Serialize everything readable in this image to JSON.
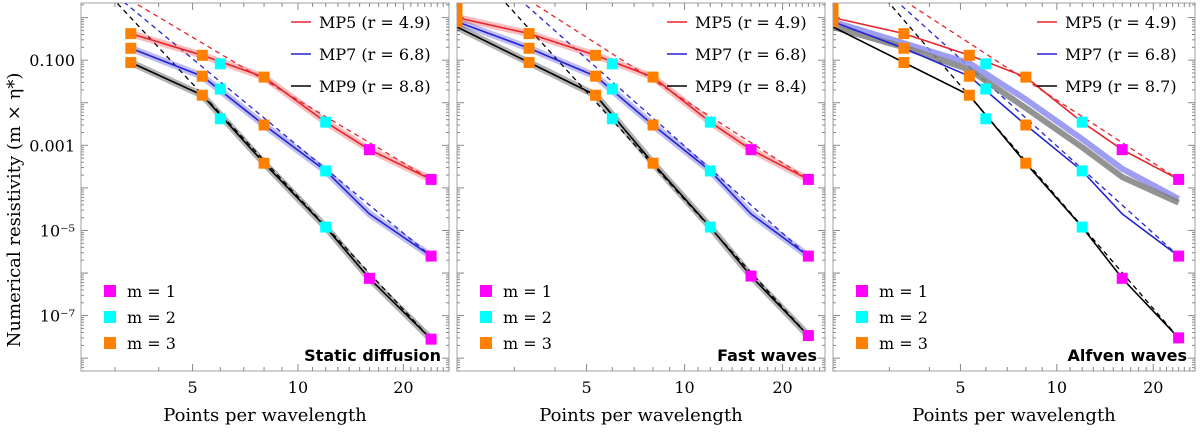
{
  "y_axis_title": "Numerical resistivity (m × η*)",
  "chart_data": [
    {
      "type": "line",
      "title": "Static diffusion",
      "xlabel": "Points per wavelength",
      "ylabel": "Numerical resistivity (m × η*)",
      "xscale": "log",
      "yscale": "log",
      "xlim": [
        2.4,
        27
      ],
      "ylim": [
        5e-09,
        2.2
      ],
      "x_ticks": [
        5,
        10,
        20
      ],
      "y_ticks": [
        {
          "value": 0.1,
          "label": "0.100"
        },
        {
          "value": 0.001,
          "label": "0.001"
        },
        {
          "value": 1e-05,
          "label": "10⁻⁵"
        },
        {
          "value": 1e-07,
          "label": "10⁻⁷"
        }
      ],
      "series": [
        {
          "name": "MP5 (r = 4.9)",
          "color": "#e8242a",
          "slope": -4.9,
          "x": [
            3.33,
            5.33,
            8.0,
            12.0,
            16.0,
            24.0
          ],
          "y": [
            0.42,
            0.13,
            0.04,
            0.0035,
            0.00079,
            0.000158
          ]
        },
        {
          "name": "MP7 (r = 6.8)",
          "color": "#2323d4",
          "slope": -6.8,
          "x": [
            3.33,
            5.33,
            8.0,
            12.0,
            16.0,
            24.0
          ],
          "y": [
            0.19,
            0.042,
            0.003,
            0.00025,
            2.45e-05,
            2.5e-06
          ]
        },
        {
          "name": "MP9 (r = 8.8)",
          "color": "#000000",
          "slope": -8.8,
          "x": [
            3.33,
            5.33,
            8.0,
            12.0,
            16.0,
            24.0
          ],
          "y": [
            0.088,
            0.015,
            0.00038,
            1.2e-05,
            7.5e-07,
            2.8e-08
          ]
        }
      ],
      "markers": [
        {
          "m": 1,
          "x": [
            16.0,
            16.0,
            24.0,
            24.0,
            24.0
          ],
          "y": [
            0.00079,
            7.5e-07,
            0.000158,
            2.5e-06,
            2.8e-08
          ]
        },
        {
          "m": 2,
          "x": [
            6.0,
            6.0,
            6.0,
            12.0,
            12.0,
            12.0
          ],
          "y": [
            0.082,
            0.021,
            0.0042,
            0.0035,
            0.00025,
            1.2e-05
          ]
        },
        {
          "m": 3,
          "x": [
            3.33,
            3.33,
            3.33,
            5.33,
            5.33,
            5.33,
            8.0,
            8.0,
            8.0
          ],
          "y": [
            0.42,
            0.19,
            0.088,
            0.13,
            0.042,
            0.015,
            0.04,
            0.003,
            0.00038
          ]
        }
      ],
      "wide_bands": []
    },
    {
      "type": "line",
      "title": "Fast waves",
      "xlabel": "Points per wavelength",
      "ylabel": "",
      "xscale": "log",
      "yscale": "log",
      "xlim": [
        2.0,
        27
      ],
      "ylim": [
        5e-09,
        2.2
      ],
      "x_ticks": [
        5,
        10,
        20
      ],
      "y_ticks": [],
      "series": [
        {
          "name": "MP5 (r = 4.9)",
          "color": "#e8242a",
          "slope": -4.9,
          "x": [
            2.0,
            3.33,
            5.33,
            8.0,
            12.0,
            16.0,
            24.0
          ],
          "y": [
            1.0,
            0.42,
            0.13,
            0.04,
            0.0035,
            0.00079,
            0.000158
          ]
        },
        {
          "name": "MP7 (r = 6.8)",
          "color": "#2323d4",
          "slope": -6.8,
          "x": [
            2.0,
            3.33,
            5.33,
            8.0,
            12.0,
            16.0,
            24.0
          ],
          "y": [
            0.8,
            0.19,
            0.042,
            0.003,
            0.00025,
            2.45e-05,
            2.5e-06
          ]
        },
        {
          "name": "MP9 (r = 8.4)",
          "color": "#000000",
          "slope": -8.4,
          "x": [
            2.0,
            3.33,
            5.33,
            8.0,
            12.0,
            16.0,
            24.0
          ],
          "y": [
            0.6,
            0.088,
            0.015,
            0.00038,
            1.2e-05,
            8.5e-07,
            3.4e-08
          ]
        }
      ],
      "markers": [
        {
          "m": 1,
          "x": [
            16.0,
            16.0,
            24.0,
            24.0,
            24.0
          ],
          "y": [
            0.00079,
            8.5e-07,
            0.000158,
            2.5e-06,
            3.4e-08
          ]
        },
        {
          "m": 2,
          "x": [
            6.0,
            6.0,
            6.0,
            12.0,
            12.0,
            12.0
          ],
          "y": [
            0.082,
            0.021,
            0.0042,
            0.0035,
            0.00025,
            1.2e-05
          ]
        },
        {
          "m": 3,
          "x": [
            2.0,
            2.0,
            2.0,
            3.33,
            3.33,
            3.33,
            5.33,
            5.33,
            5.33,
            8.0,
            8.0,
            8.0
          ],
          "y": [
            1.6,
            1.1,
            0.8,
            0.42,
            0.19,
            0.088,
            0.13,
            0.042,
            0.015,
            0.04,
            0.003,
            0.00038
          ]
        }
      ],
      "wide_bands": []
    },
    {
      "type": "line",
      "title": "Alfven waves",
      "xlabel": "Points per wavelength",
      "ylabel": "",
      "xscale": "log",
      "yscale": "log",
      "xlim": [
        2.0,
        27
      ],
      "ylim": [
        5e-09,
        2.2
      ],
      "x_ticks": [
        5,
        10,
        20
      ],
      "y_ticks": [],
      "series": [
        {
          "name": "MP5 (r = 4.9)",
          "color": "#e8242a",
          "slope": -4.9,
          "x": [
            2.0,
            3.33,
            5.33,
            8.0,
            12.0,
            16.0,
            24.0
          ],
          "y": [
            1.0,
            0.42,
            0.13,
            0.04,
            0.0035,
            0.00079,
            0.000158
          ]
        },
        {
          "name": "MP7 (r = 6.8)",
          "color": "#2323d4",
          "slope": -6.8,
          "x": [
            2.0,
            3.33,
            5.33,
            8.0,
            12.0,
            16.0,
            24.0
          ],
          "y": [
            0.8,
            0.19,
            0.042,
            0.003,
            0.00025,
            2.45e-05,
            2.5e-06
          ]
        },
        {
          "name": "MP9 (r = 8.7)",
          "color": "#000000",
          "slope": -8.7,
          "x": [
            2.0,
            3.33,
            5.33,
            8.0,
            12.0,
            16.0,
            24.0
          ],
          "y": [
            0.6,
            0.088,
            0.015,
            0.00038,
            1.2e-05,
            7.5e-07,
            3e-08
          ]
        }
      ],
      "markers": [
        {
          "m": 1,
          "x": [
            16.0,
            16.0,
            24.0,
            24.0,
            24.0
          ],
          "y": [
            0.00079,
            7.5e-07,
            0.000158,
            2.5e-06,
            3e-08
          ]
        },
        {
          "m": 2,
          "x": [
            6.0,
            6.0,
            6.0,
            12.0,
            12.0,
            12.0
          ],
          "y": [
            0.082,
            0.021,
            0.0042,
            0.0035,
            0.00025,
            1.2e-05
          ]
        },
        {
          "m": 3,
          "x": [
            2.0,
            2.0,
            2.0,
            3.33,
            3.33,
            3.33,
            5.33,
            5.33,
            5.33,
            8.0,
            8.0,
            8.0
          ],
          "y": [
            1.6,
            1.1,
            0.8,
            0.42,
            0.19,
            0.088,
            0.13,
            0.042,
            0.015,
            0.04,
            0.003,
            0.00038
          ]
        }
      ],
      "wide_bands": [
        {
          "color": "#8c8cf0",
          "x": [
            2.0,
            3.33,
            5.33,
            8.0,
            12.0,
            16.0,
            24.0
          ],
          "y": [
            0.8,
            0.25,
            0.085,
            0.012,
            0.0014,
            0.00028,
            5.5e-05
          ]
        },
        {
          "color": "#808080",
          "x": [
            2.0,
            3.33,
            5.33,
            8.0,
            12.0,
            16.0,
            24.0
          ],
          "y": [
            0.6,
            0.2,
            0.06,
            0.0075,
            0.0009,
            0.00018,
            4.5e-05
          ]
        }
      ]
    }
  ],
  "marker_legend": [
    {
      "label": "m = 1",
      "color": "#ff00ff"
    },
    {
      "label": "m = 2",
      "color": "#00ffff"
    },
    {
      "label": "m = 3",
      "color": "#ff8000"
    }
  ]
}
